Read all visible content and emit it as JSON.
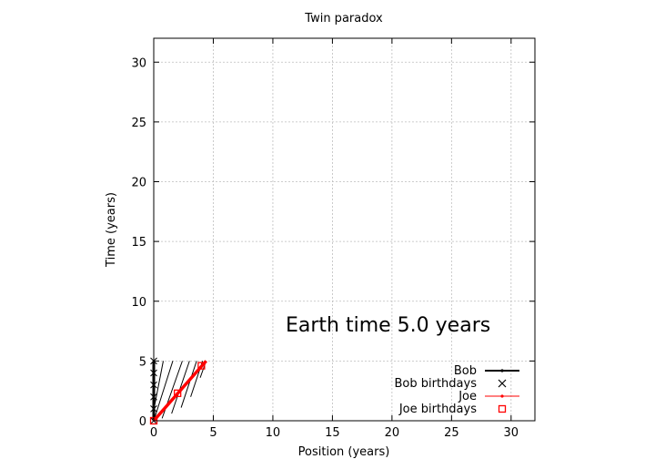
{
  "chart_data": {
    "type": "line",
    "title": "Twin paradox",
    "xlabel": "Position (years)",
    "ylabel": "Time (years)",
    "xlim": [
      0,
      32
    ],
    "ylim": [
      0,
      32
    ],
    "xticks": [
      "0",
      "5",
      "10",
      "15",
      "20",
      "25",
      "30"
    ],
    "yticks": [
      "0",
      "5",
      "10",
      "15",
      "20",
      "25",
      "30"
    ],
    "grid": true,
    "legend_position": "bottom-right",
    "annotation": "Earth time  5.0 years",
    "series": [
      {
        "name": "Bob",
        "color": "#000000",
        "x": [
          0,
          0
        ],
        "y": [
          0,
          5.0
        ]
      },
      {
        "name": "Bob birthdays",
        "color": "#000000",
        "marker": "x",
        "x": [
          0,
          0,
          0,
          0,
          0,
          0
        ],
        "y": [
          0,
          1,
          2,
          3,
          4,
          5
        ]
      },
      {
        "name": "Joe",
        "color": "#ff0000",
        "x": [
          0,
          4.4
        ],
        "y": [
          0,
          5.0
        ]
      },
      {
        "name": "Joe birthdays",
        "color": "#ff0000",
        "marker": "square",
        "x": [
          0,
          2.0,
          4.0
        ],
        "y": [
          0,
          2.3,
          4.6
        ]
      }
    ],
    "hatch_lines": [
      {
        "x": [
          0,
          0.8
        ],
        "y": [
          0.9,
          5.0
        ]
      },
      {
        "x": [
          0,
          1.6
        ],
        "y": [
          0.0,
          5.0
        ]
      },
      {
        "x": [
          0.7,
          2.4
        ],
        "y": [
          0.2,
          5.0
        ]
      },
      {
        "x": [
          1.5,
          3.0
        ],
        "y": [
          0.6,
          5.0
        ]
      },
      {
        "x": [
          2.3,
          3.6
        ],
        "y": [
          1.1,
          5.0
        ]
      },
      {
        "x": [
          3.1,
          4.1
        ],
        "y": [
          2.0,
          5.0
        ]
      },
      {
        "x": [
          3.9,
          4.4
        ],
        "y": [
          3.6,
          5.0
        ]
      }
    ]
  }
}
